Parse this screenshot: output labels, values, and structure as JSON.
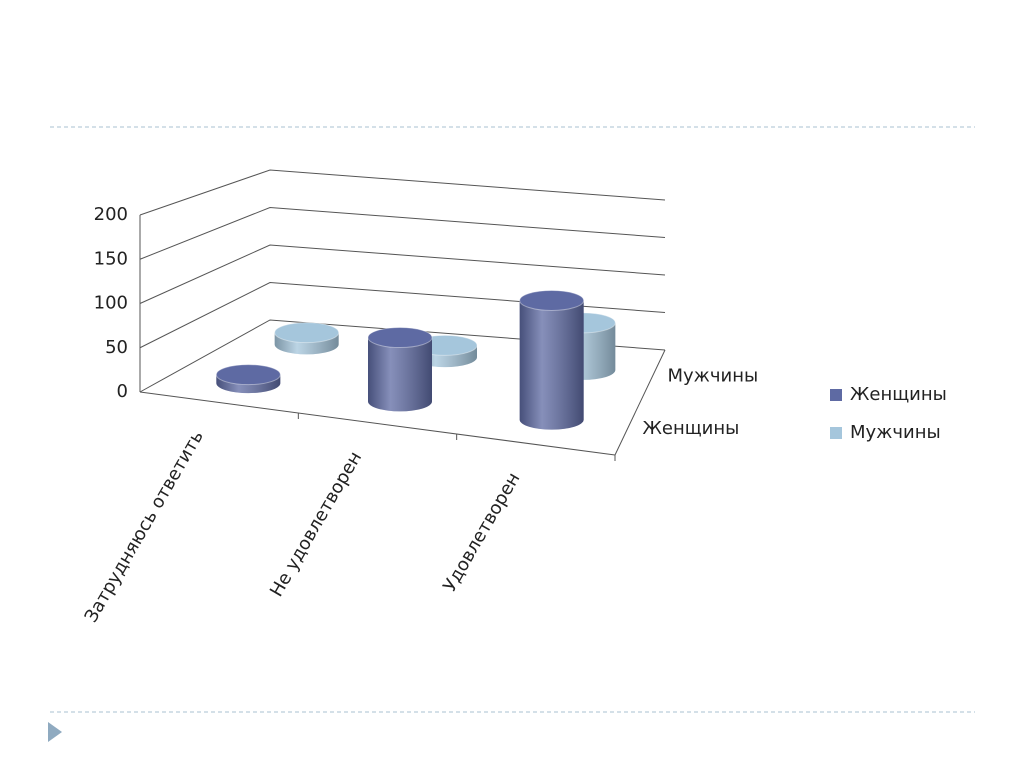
{
  "chart_data": {
    "type": "cylinder3d",
    "categories": [
      "Затрудняюсь ответить",
      "Не удовлетворен",
      "Удовлетворен"
    ],
    "series": [
      {
        "name": "Женщины",
        "color": "#5e6aa3",
        "values": [
          10,
          75,
          140
        ]
      },
      {
        "name": "Мужчины",
        "color": "#a5c6dc",
        "values": [
          15,
          15,
          60
        ]
      }
    ],
    "ylim": [
      0,
      200
    ],
    "yticks": [
      0,
      50,
      100,
      150,
      200
    ],
    "grid": true,
    "legend": "right"
  }
}
